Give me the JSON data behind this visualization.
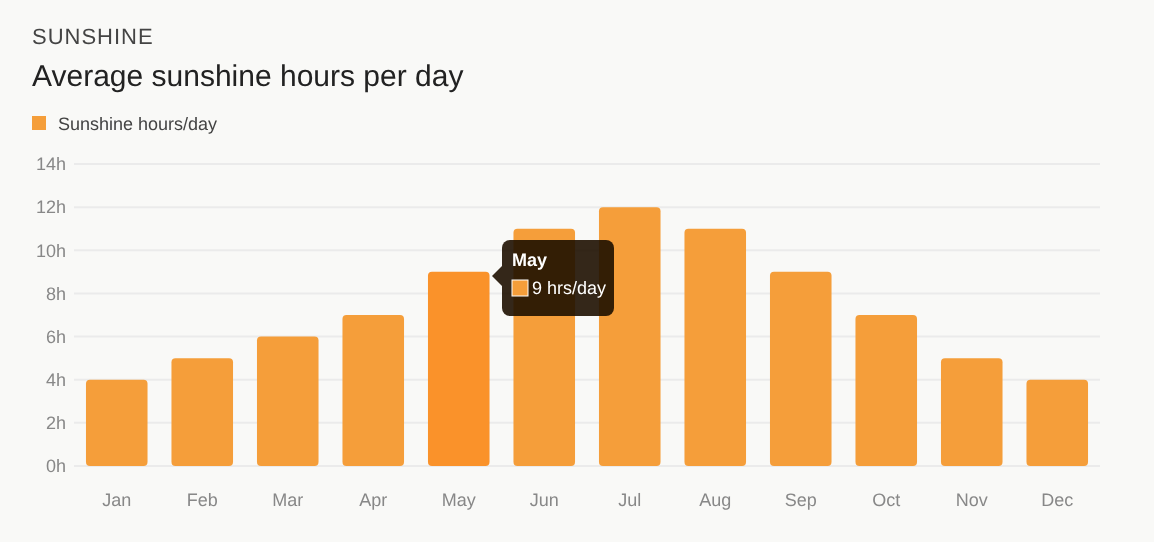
{
  "chart_data": {
    "type": "bar",
    "subtitle": "SUNSHINE",
    "title": "Average sunshine hours per day",
    "categories": [
      "Jan",
      "Feb",
      "Mar",
      "Apr",
      "May",
      "Jun",
      "Jul",
      "Aug",
      "Sep",
      "Oct",
      "Nov",
      "Dec"
    ],
    "series": [
      {
        "name": "Sunshine hours/day",
        "color": "#f59e3a",
        "values": [
          4,
          5,
          6,
          7,
          9,
          11,
          12,
          11,
          9,
          7,
          5,
          4
        ],
        "colors": [
          "#f59e3a",
          "#f59e3a",
          "#f59e3a",
          "#f59e3a",
          "#fa922a",
          "#f59e3a",
          "#f59e3a",
          "#f59e3a",
          "#f59e3a",
          "#f59e3a",
          "#f59e3a",
          "#f59e3a"
        ]
      }
    ],
    "ylim": [
      0,
      14
    ],
    "yticks": [
      {
        "value": 0,
        "label": "0h"
      },
      {
        "value": 2,
        "label": "2h"
      },
      {
        "value": 4,
        "label": "4h"
      },
      {
        "value": 6,
        "label": "6h"
      },
      {
        "value": 8,
        "label": "8h"
      },
      {
        "value": 10,
        "label": "10h"
      },
      {
        "value": 12,
        "label": "12h"
      },
      {
        "value": 14,
        "label": "14h"
      }
    ],
    "grid": "y",
    "legend": "top left",
    "annotations": [
      "May\n9 hrs/day"
    ]
  }
}
